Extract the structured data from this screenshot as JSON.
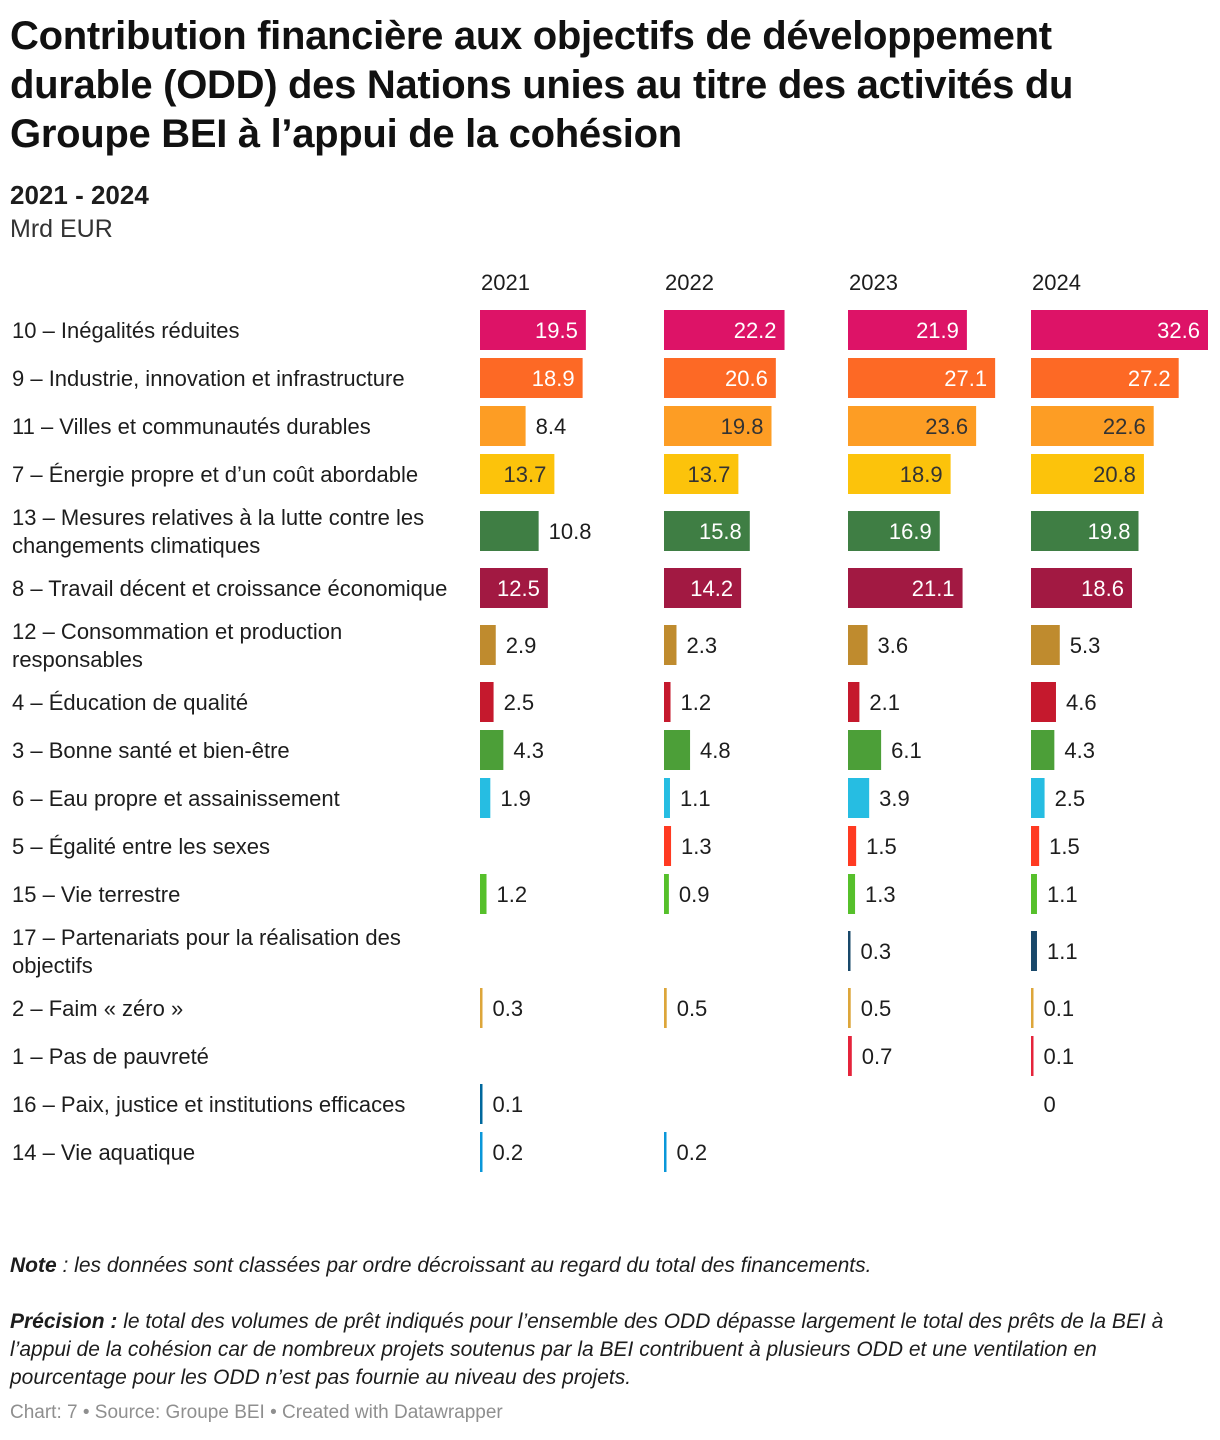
{
  "header": {
    "title": "Contribution financière aux objectifs de développement durable (ODD) des Nations unies au titre des activités du Groupe BEI à l’appui de la cohésion",
    "range": "2021 - 2024",
    "unit": "Mrd EUR"
  },
  "chart_data": {
    "type": "bar",
    "title": "Contribution financière aux objectifs de développement durable (ODD) des Nations unies au titre des activités du Groupe BEI à l’appui de la cohésion",
    "subtitle": "2021 - 2024",
    "unit": "Mrd EUR",
    "panels": [
      "2021",
      "2022",
      "2023",
      "2024"
    ],
    "xlim": [
      0,
      32.6
    ],
    "categories": [
      {
        "label": "10 – Inégalités réduites",
        "color": "#DD1367",
        "values": [
          19.5,
          22.2,
          21.9,
          32.6
        ]
      },
      {
        "label": "9 – Industrie, innovation et infrastructure",
        "color": "#FD6925",
        "values": [
          18.9,
          20.6,
          27.1,
          27.2
        ]
      },
      {
        "label": "11 – Villes et communautés durables",
        "color": "#FD9D24",
        "values": [
          8.4,
          19.8,
          23.6,
          22.6
        ]
      },
      {
        "label": "7 – Énergie propre et d’un coût abordable",
        "color": "#FCC30B",
        "values": [
          13.7,
          13.7,
          18.9,
          20.8
        ]
      },
      {
        "label": "13 – Mesures relatives à la lutte contre les changements climatiques",
        "color": "#3F7E44",
        "values": [
          10.8,
          15.8,
          16.9,
          19.8
        ]
      },
      {
        "label": "8 – Travail décent et croissance économique",
        "color": "#A21942",
        "values": [
          12.5,
          14.2,
          21.1,
          18.6
        ]
      },
      {
        "label": "12 – Consommation et production responsables",
        "color": "#BF8B2E",
        "values": [
          2.9,
          2.3,
          3.6,
          5.3
        ]
      },
      {
        "label": "4 – Éducation de qualité",
        "color": "#C5192D",
        "values": [
          2.5,
          1.2,
          2.1,
          4.6
        ]
      },
      {
        "label": "3 – Bonne santé et bien-être",
        "color": "#4C9F38",
        "values": [
          4.3,
          4.8,
          6.1,
          4.3
        ]
      },
      {
        "label": "6 – Eau propre et assainissement",
        "color": "#26BDE2",
        "values": [
          1.9,
          1.1,
          3.9,
          2.5
        ]
      },
      {
        "label": "5 – Égalité entre les sexes",
        "color": "#FF3A21",
        "values": [
          null,
          1.3,
          1.5,
          1.5
        ]
      },
      {
        "label": "15 – Vie terrestre",
        "color": "#56C02B",
        "values": [
          1.2,
          0.9,
          1.3,
          1.1
        ]
      },
      {
        "label": "17 – Partenariats pour la réalisation des objectifs",
        "color": "#19486A",
        "values": [
          null,
          null,
          0.3,
          1.1
        ]
      },
      {
        "label": "2 – Faim « zéro »",
        "color": "#DDA63A",
        "values": [
          0.3,
          0.5,
          0.5,
          0.1
        ]
      },
      {
        "label": "1 – Pas de pauvreté",
        "color": "#E5243B",
        "values": [
          null,
          null,
          0.7,
          0.1
        ]
      },
      {
        "label": "16 – Paix, justice et institutions efficaces",
        "color": "#00689D",
        "values": [
          0.1,
          null,
          null,
          0
        ]
      },
      {
        "label": "14 – Vie aquatique",
        "color": "#0A97D9",
        "values": [
          0.2,
          0.2,
          null,
          null
        ]
      }
    ]
  },
  "notes": {
    "note_label": "Note",
    "note_text": " : les données sont classées par ordre décroissant au regard du total des financements.",
    "precision_label": "Précision :",
    "precision_text": " le total des volumes de prêt indiqués pour l’ensemble des ODD dépasse largement le total des prêts de la BEI à l’appui de la cohésion car de nombreux projets soutenus par la BEI contribuent à plusieurs ODD et une ventilation en pourcentage pour les ODD n’est pas fournie au niveau des projets."
  },
  "footer": {
    "text": "Chart: 7 • Source: Groupe BEI • Created with Datawrapper"
  }
}
